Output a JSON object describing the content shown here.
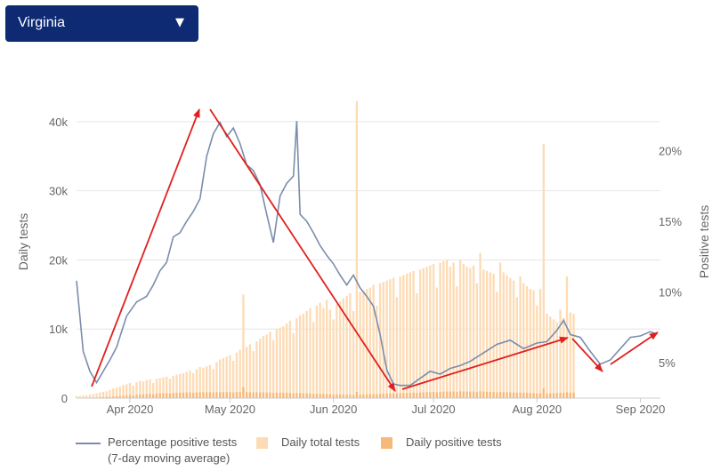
{
  "dropdown": {
    "selected": "Virginia",
    "caret_icon": "chevron-down-icon"
  },
  "chart_data": {
    "type": "bar",
    "colors": {
      "line": "#7b8dab",
      "total_bars": "#fddbb4",
      "positive_bars": "#f7b97b",
      "arrows": "#e02020",
      "grid": "#e6e6e6"
    },
    "left_axis": {
      "label": "Daily tests",
      "ylim": [
        0,
        45000
      ],
      "ticks": [
        0,
        10000,
        20000,
        30000,
        40000
      ],
      "tick_labels": [
        "0",
        "10k",
        "20k",
        "30k",
        "40k"
      ]
    },
    "right_axis": {
      "label": "Positive tests",
      "ylim": [
        0.025,
        0.245
      ],
      "ticks": [
        0.05,
        0.1,
        0.15,
        0.2
      ],
      "tick_labels": [
        "5%",
        "10%",
        "15%",
        "20%"
      ]
    },
    "x_axis": {
      "ticks": [
        "2020-04-01",
        "2020-05-01",
        "2020-06-01",
        "2020-07-01",
        "2020-08-01",
        "2020-09-01"
      ],
      "tick_labels": [
        "Apr 2020",
        "May 2020",
        "Jun 2020",
        "Jul 2020",
        "Aug 2020",
        "Sep 2020"
      ],
      "range": [
        "2020-03-16",
        "2020-09-07"
      ]
    },
    "series": [
      {
        "name": "Percentage positive tests (7-day moving average)",
        "legend_lines": [
          "Percentage positive tests",
          "(7-day moving average)"
        ],
        "type": "line",
        "points": [
          [
            "2020-03-16",
            0.108
          ],
          [
            "2020-03-18",
            0.058
          ],
          [
            "2020-03-20",
            0.044
          ],
          [
            "2020-03-22",
            0.036
          ],
          [
            "2020-03-24",
            0.044
          ],
          [
            "2020-03-26",
            0.052
          ],
          [
            "2020-03-28",
            0.061
          ],
          [
            "2020-03-31",
            0.083
          ],
          [
            "2020-04-03",
            0.093
          ],
          [
            "2020-04-06",
            0.097
          ],
          [
            "2020-04-08",
            0.105
          ],
          [
            "2020-04-10",
            0.115
          ],
          [
            "2020-04-12",
            0.121
          ],
          [
            "2020-04-14",
            0.139
          ],
          [
            "2020-04-16",
            0.142
          ],
          [
            "2020-04-18",
            0.15
          ],
          [
            "2020-04-20",
            0.157
          ],
          [
            "2020-04-22",
            0.166
          ],
          [
            "2020-04-24",
            0.196
          ],
          [
            "2020-04-26",
            0.212
          ],
          [
            "2020-04-28",
            0.22
          ],
          [
            "2020-04-30",
            0.21
          ],
          [
            "2020-05-02",
            0.216
          ],
          [
            "2020-05-04",
            0.205
          ],
          [
            "2020-05-06",
            0.19
          ],
          [
            "2020-05-08",
            0.186
          ],
          [
            "2020-05-10",
            0.176
          ],
          [
            "2020-05-12",
            0.155
          ],
          [
            "2020-05-14",
            0.135
          ],
          [
            "2020-05-16",
            0.168
          ],
          [
            "2020-05-18",
            0.177
          ],
          [
            "2020-05-20",
            0.182
          ],
          [
            "2020-05-21",
            0.221
          ],
          [
            "2020-05-22",
            0.155
          ],
          [
            "2020-05-24",
            0.15
          ],
          [
            "2020-05-26",
            0.142
          ],
          [
            "2020-05-28",
            0.133
          ],
          [
            "2020-05-30",
            0.126
          ],
          [
            "2020-06-01",
            0.12
          ],
          [
            "2020-06-03",
            0.112
          ],
          [
            "2020-06-05",
            0.105
          ],
          [
            "2020-06-07",
            0.112
          ],
          [
            "2020-06-09",
            0.103
          ],
          [
            "2020-06-11",
            0.097
          ],
          [
            "2020-06-13",
            0.09
          ],
          [
            "2020-06-15",
            0.07
          ],
          [
            "2020-06-17",
            0.045
          ],
          [
            "2020-06-19",
            0.035
          ],
          [
            "2020-06-21",
            0.034
          ],
          [
            "2020-06-24",
            0.034
          ],
          [
            "2020-06-27",
            0.039
          ],
          [
            "2020-06-30",
            0.044
          ],
          [
            "2020-07-03",
            0.042
          ],
          [
            "2020-07-06",
            0.046
          ],
          [
            "2020-07-09",
            0.048
          ],
          [
            "2020-07-12",
            0.051
          ],
          [
            "2020-07-16",
            0.057
          ],
          [
            "2020-07-20",
            0.063
          ],
          [
            "2020-07-24",
            0.066
          ],
          [
            "2020-07-28",
            0.06
          ],
          [
            "2020-08-01",
            0.064
          ],
          [
            "2020-08-04",
            0.065
          ],
          [
            "2020-08-07",
            0.073
          ],
          [
            "2020-08-09",
            0.08
          ],
          [
            "2020-08-11",
            0.07
          ],
          [
            "2020-08-14",
            0.068
          ],
          [
            "2020-08-17",
            0.058
          ],
          [
            "2020-08-20",
            0.049
          ],
          [
            "2020-08-23",
            0.052
          ],
          [
            "2020-08-26",
            0.06
          ],
          [
            "2020-08-29",
            0.068
          ],
          [
            "2020-09-01",
            0.069
          ],
          [
            "2020-09-04",
            0.072
          ],
          [
            "2020-09-06",
            0.07
          ]
        ]
      },
      {
        "name": "Daily total tests",
        "type": "bar",
        "start": "2020-03-16",
        "values": [
          300,
          300,
          400,
          400,
          500,
          600,
          700,
          800,
          900,
          1000,
          1200,
          1400,
          1500,
          1700,
          1900,
          2000,
          2200,
          1800,
          2300,
          2500,
          2400,
          2600,
          2700,
          2200,
          2800,
          2900,
          3000,
          3100,
          2800,
          3200,
          3400,
          3500,
          3600,
          3800,
          4000,
          3600,
          4200,
          4500,
          4400,
          4600,
          4800,
          4200,
          5200,
          5600,
          5800,
          6000,
          6200,
          5400,
          6600,
          7000,
          15000,
          7400,
          7800,
          6800,
          8200,
          8600,
          9000,
          9200,
          9600,
          8400,
          10000,
          10200,
          10400,
          10800,
          11200,
          9400,
          11600,
          12000,
          12200,
          12600,
          13000,
          11000,
          13400,
          13800,
          13000,
          14200,
          12800,
          11400,
          13600,
          14000,
          14400,
          14800,
          15200,
          12600,
          43000,
          15400,
          15600,
          15800,
          16000,
          16400,
          13400,
          16600,
          16800,
          17000,
          17200,
          17400,
          14600,
          17600,
          17800,
          18000,
          18200,
          18400,
          15200,
          18600,
          18800,
          19000,
          19200,
          19400,
          16000,
          19600,
          19800,
          20000,
          19000,
          19600,
          16200,
          20000,
          19400,
          19000,
          18800,
          19200,
          16600,
          21000,
          18600,
          18400,
          18200,
          18000,
          15400,
          19600,
          18200,
          17800,
          17400,
          17000,
          14600,
          17600,
          16600,
          16200,
          15800,
          15600,
          13400,
          15800,
          36800,
          12200,
          11800,
          11400,
          11000,
          12800,
          11600,
          17600,
          12400,
          12200
        ]
      },
      {
        "name": "Daily positive tests",
        "type": "bar",
        "start": "2020-03-16",
        "values": [
          30,
          35,
          45,
          55,
          70,
          80,
          100,
          120,
          140,
          170,
          200,
          230,
          260,
          300,
          350,
          380,
          420,
          380,
          470,
          520,
          540,
          580,
          620,
          540,
          660,
          700,
          720,
          740,
          660,
          760,
          780,
          800,
          810,
          820,
          830,
          780,
          840,
          850,
          840,
          850,
          860,
          820,
          870,
          880,
          870,
          860,
          880,
          820,
          890,
          880,
          1600,
          870,
          860,
          820,
          850,
          840,
          830,
          820,
          810,
          760,
          800,
          790,
          780,
          770,
          760,
          700,
          740,
          720,
          700,
          680,
          660,
          620,
          640,
          620,
          600,
          580,
          560,
          520,
          540,
          520,
          500,
          500,
          510,
          470,
          900,
          520,
          540,
          560,
          580,
          600,
          560,
          620,
          640,
          660,
          680,
          700,
          660,
          720,
          740,
          760,
          780,
          800,
          760,
          820,
          840,
          860,
          880,
          900,
          840,
          920,
          940,
          960,
          940,
          960,
          880,
          980,
          960,
          950,
          940,
          960,
          880,
          1000,
          940,
          920,
          900,
          880,
          820,
          920,
          880,
          860,
          840,
          820,
          760,
          820,
          780,
          760,
          740,
          720,
          680,
          720,
          1400,
          700,
          700,
          720,
          740,
          780,
          760,
          860,
          800,
          790
        ]
      }
    ]
  }
}
